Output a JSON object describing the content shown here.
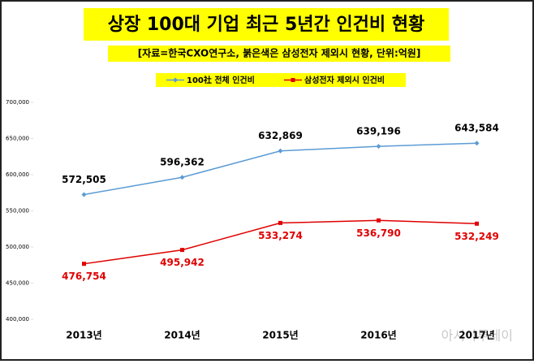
{
  "chart_data": {
    "type": "line",
    "title": "상장 100대 기업 최근 5년간 인건비 현황",
    "subtitle": "[자료=한국CXO연구소, 붉은색은 삼성전자 제외시 현황, 단위:억원]",
    "categories": [
      "2013년",
      "2014년",
      "2015년",
      "2016년",
      "2017년"
    ],
    "series": [
      {
        "name": "100社 전체 인건비",
        "color": "#5b9bd5",
        "marker": "diamond",
        "values": [
          572505,
          596362,
          632869,
          639196,
          643584
        ],
        "value_labels": [
          "572,505",
          "596,362",
          "632,869",
          "639,196",
          "643,584"
        ]
      },
      {
        "name": "삼성전자 제외시 인건비",
        "color": "#e00000",
        "marker": "square",
        "values": [
          476754,
          495942,
          533274,
          536790,
          532249
        ],
        "value_labels": [
          "476,754",
          "495,942",
          "533,274",
          "536,790",
          "532,249"
        ]
      }
    ],
    "ylim": [
      400000,
      700000
    ],
    "yticks": [
      {
        "value": 400000,
        "label": "400,000"
      },
      {
        "value": 450000,
        "label": "450,000"
      },
      {
        "value": 500000,
        "label": "500,000"
      },
      {
        "value": 550000,
        "label": "550,000"
      },
      {
        "value": 600000,
        "label": "600,000"
      },
      {
        "value": 650000,
        "label": "650,000"
      },
      {
        "value": 700000,
        "label": "700,000"
      }
    ],
    "grid": false,
    "watermark": "아시아투데이"
  }
}
